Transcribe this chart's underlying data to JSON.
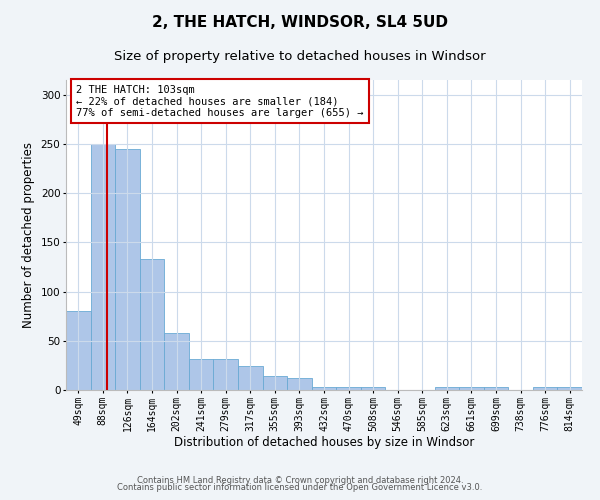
{
  "title": "2, THE HATCH, WINDSOR, SL4 5UD",
  "subtitle": "Size of property relative to detached houses in Windsor",
  "xlabel": "Distribution of detached houses by size in Windsor",
  "ylabel": "Number of detached properties",
  "categories": [
    "49sqm",
    "88sqm",
    "126sqm",
    "164sqm",
    "202sqm",
    "241sqm",
    "279sqm",
    "317sqm",
    "355sqm",
    "393sqm",
    "432sqm",
    "470sqm",
    "508sqm",
    "546sqm",
    "585sqm",
    "623sqm",
    "661sqm",
    "699sqm",
    "738sqm",
    "776sqm",
    "814sqm"
  ],
  "values": [
    80,
    250,
    245,
    133,
    58,
    32,
    32,
    24,
    14,
    12,
    3,
    3,
    3,
    0,
    0,
    3,
    3,
    3,
    0,
    3,
    3
  ],
  "bar_color": "#aec6e8",
  "bar_edge_color": "#6aaad4",
  "bar_width": 1.0,
  "ylim": [
    0,
    315
  ],
  "yticks": [
    0,
    50,
    100,
    150,
    200,
    250,
    300
  ],
  "vline_x": 1.18,
  "vline_color": "#cc0000",
  "annotation_text": "2 THE HATCH: 103sqm\n← 22% of detached houses are smaller (184)\n77% of semi-detached houses are larger (655) →",
  "annotation_box_color": "#ffffff",
  "annotation_box_edge": "#cc0000",
  "footer_line1": "Contains HM Land Registry data © Crown copyright and database right 2024.",
  "footer_line2": "Contains public sector information licensed under the Open Government Licence v3.0.",
  "background_color": "#f0f4f8",
  "plot_bg_color": "#ffffff",
  "grid_color": "#ccdaeb",
  "title_fontsize": 11,
  "subtitle_fontsize": 9.5,
  "axis_label_fontsize": 8.5,
  "tick_fontsize": 7,
  "annotation_fontsize": 7.5,
  "footer_fontsize": 6
}
